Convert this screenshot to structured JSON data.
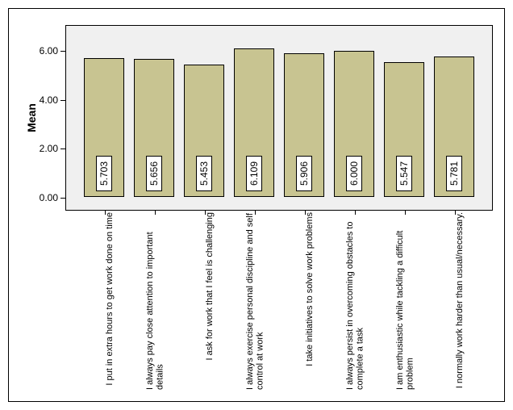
{
  "chart": {
    "type": "bar",
    "y_axis_label": "Mean",
    "ylim": [
      0.0,
      6.5
    ],
    "yticks": [
      0.0,
      2.0,
      4.0,
      6.0
    ],
    "ytick_labels": [
      "0.00",
      "2.00",
      "4.00",
      "6.00"
    ],
    "bar_color": "#c8c491",
    "bar_border_color": "#000000",
    "plot_background": "#f0f0f0",
    "outer_background": "#ffffff",
    "value_box_background": "#ffffff",
    "value_box_border": "#000000",
    "font_family": "Arial",
    "y_label_fontsize": 14,
    "tick_fontsize": 12,
    "value_fontsize": 12,
    "x_label_fontsize": 11,
    "categories": [
      "I put in extra hours to get work done on time",
      "I always pay close attention to important details",
      "I ask for work that I feel is challenging",
      "I always exercise personal discipline and self control at work",
      "I take initiatives to solve work problems",
      "I always persist in overcoming obstacles to complete a task",
      "I am enthusiastic while tackling a difficult problem",
      "I normally work harder than usual/necessary."
    ],
    "values": [
      5.703,
      5.656,
      5.453,
      6.109,
      5.906,
      6.0,
      5.547,
      5.781
    ],
    "value_labels": [
      "5.703",
      "5.656",
      "5.453",
      "6.109",
      "5.906",
      "6.000",
      "5.547",
      "5.781"
    ]
  }
}
